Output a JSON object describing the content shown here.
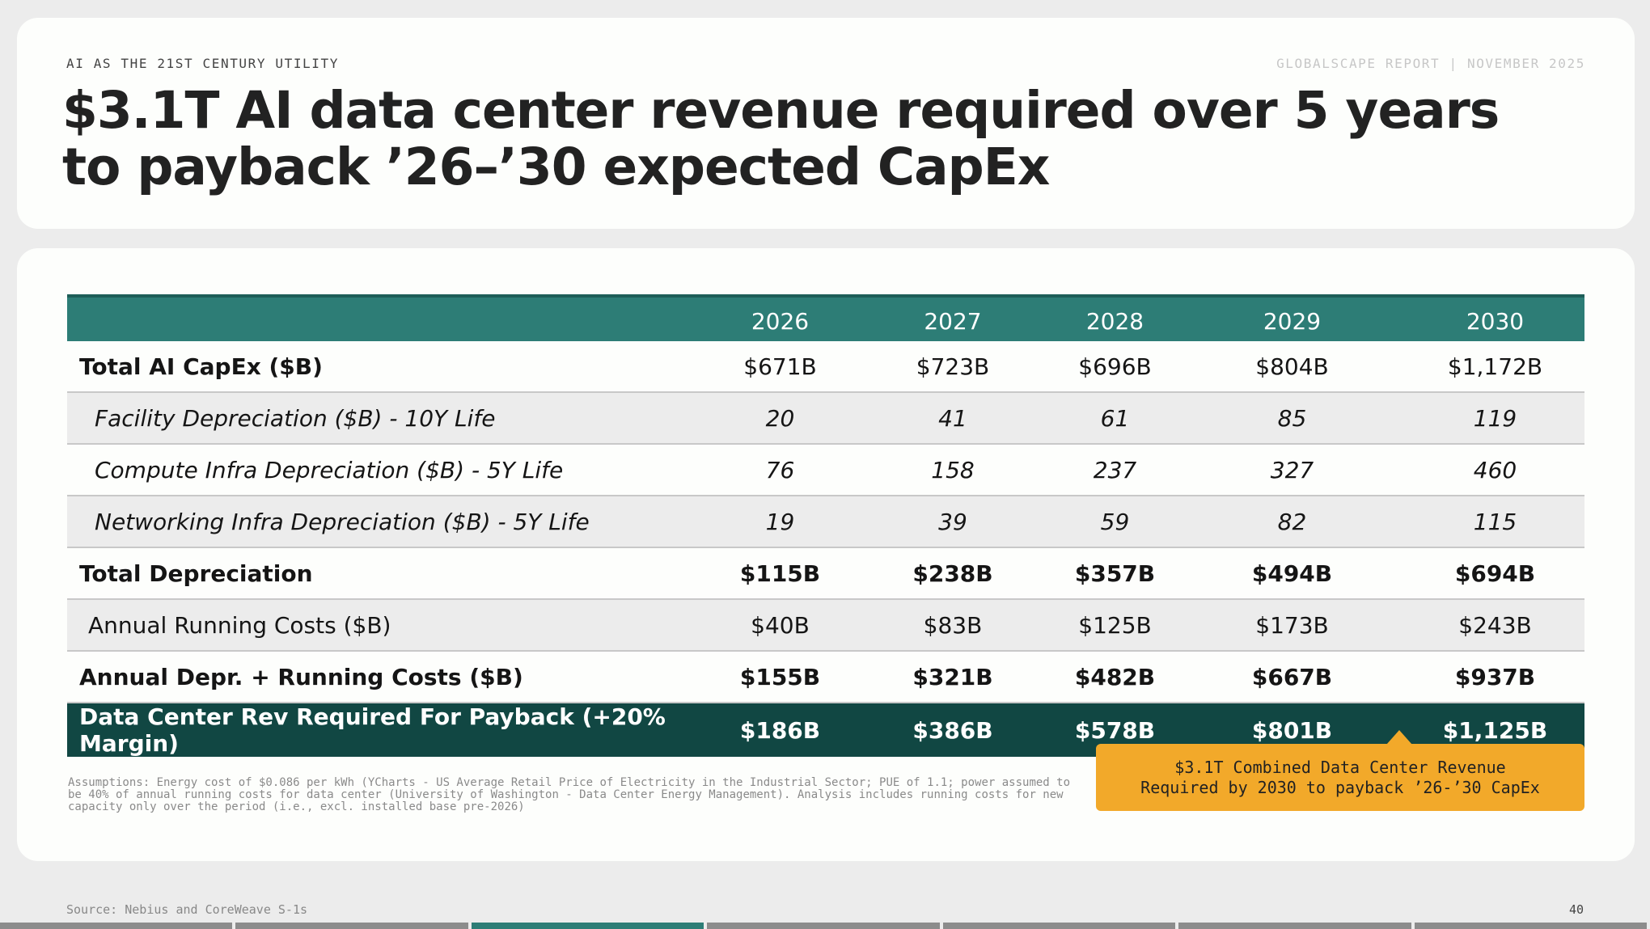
{
  "header": {
    "kicker": "AI AS THE 21ST CENTURY UTILITY",
    "report": "GLOBALSCAPE REPORT | NOVEMBER 2025",
    "title": "$3.1T AI data center revenue required over 5 years to payback ’26–’30 expected CapEx"
  },
  "table": {
    "years": [
      "2026",
      "2027",
      "2028",
      "2029",
      "2030"
    ],
    "rows": [
      {
        "label": "Total AI CapEx ($B)",
        "values": [
          "$671B",
          "$723B",
          "$696B",
          "$804B",
          "$1,172B"
        ]
      },
      {
        "label": "Facility Depreciation ($B) - 10Y Life",
        "values": [
          "20",
          "41",
          "61",
          "85",
          "119"
        ]
      },
      {
        "label": "Compute Infra Depreciation ($B) - 5Y Life",
        "values": [
          "76",
          "158",
          "237",
          "327",
          "460"
        ]
      },
      {
        "label": "Networking Infra Depreciation ($B) - 5Y Life",
        "values": [
          "19",
          "39",
          "59",
          "82",
          "115"
        ]
      },
      {
        "label": "Total Depreciation",
        "values": [
          "$115B",
          "$238B",
          "$357B",
          "$494B",
          "$694B"
        ]
      },
      {
        "label": "Annual Running Costs ($B)",
        "values": [
          "$40B",
          "$83B",
          "$125B",
          "$173B",
          "$243B"
        ]
      },
      {
        "label": "Annual Depr. + Running Costs ($B)",
        "values": [
          "$155B",
          "$321B",
          "$482B",
          "$667B",
          "$937B"
        ]
      },
      {
        "label": "Data Center Rev Required For Payback (+20% Margin)",
        "values": [
          "$186B",
          "$386B",
          "$578B",
          "$801B",
          "$1,125B"
        ]
      }
    ]
  },
  "callout": {
    "line1": "$3.1T Combined Data Center Revenue",
    "line2": "Required by 2030 to payback ’26-’30 CapEx"
  },
  "assumptions": "Assumptions: Energy cost of $0.086 per kWh (YCharts - US Average Retail Price of Electricity in the Industrial Sector; PUE of 1.1; power assumed to be 40% of annual running costs for data center (University of Washington - Data Center Energy Management). Analysis includes running costs for new capacity only over the period (i.e., excl. installed base pre-2026)",
  "footer": {
    "source": "Source: Nebius and CoreWeave S-1s",
    "page": "40"
  },
  "progress": {
    "segments": 7,
    "active_index": 2
  },
  "colors": {
    "accent": "#2d7d76",
    "dark": "#114743",
    "callout": "#f2a92a"
  }
}
